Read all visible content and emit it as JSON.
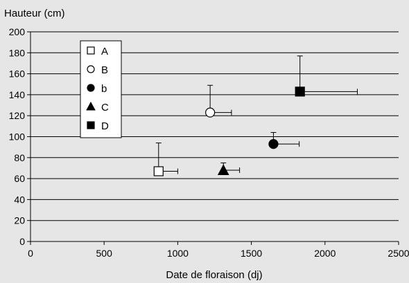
{
  "chart_data": {
    "type": "scatter",
    "ylabel": "Hauteur (cm)",
    "xlabel": "Date de floraison (dj)",
    "xlim": [
      0,
      2500
    ],
    "ylim": [
      0,
      200
    ],
    "x_ticks": [
      0,
      500,
      1000,
      1500,
      2000,
      2500
    ],
    "y_ticks": [
      0,
      20,
      40,
      60,
      80,
      100,
      120,
      140,
      160,
      180,
      200
    ],
    "grid": "horizontal",
    "legend_position": "top-left",
    "series": [
      {
        "name": "A",
        "marker": "open-square",
        "x": 870,
        "y": 67,
        "x_error": 130,
        "y_error": 27
      },
      {
        "name": "B",
        "marker": "open-circle",
        "x": 1220,
        "y": 123,
        "x_error": 145,
        "y_error": 26
      },
      {
        "name": "b",
        "marker": "filled-circle",
        "x": 1650,
        "y": 93,
        "x_error": 175,
        "y_error": 11
      },
      {
        "name": "C",
        "marker": "filled-triangle",
        "x": 1310,
        "y": 68,
        "x_error": 110,
        "y_error": 7
      },
      {
        "name": "D",
        "marker": "filled-square",
        "x": 1830,
        "y": 143,
        "x_error": 390,
        "y_error": 34
      }
    ]
  }
}
